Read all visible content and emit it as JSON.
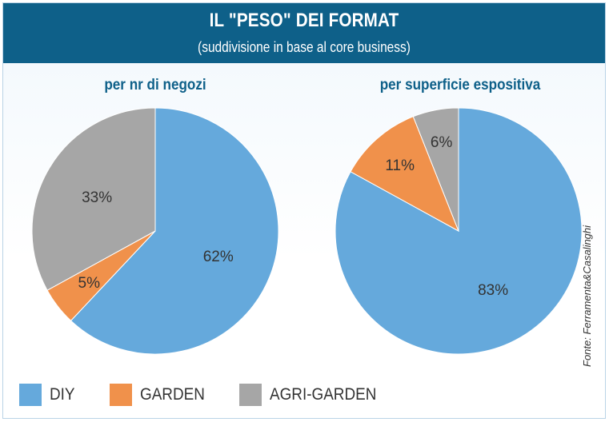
{
  "header": {
    "title": "IL \"PESO\" DEI FORMAT",
    "subtitle": "(suddivisione in base al core business)"
  },
  "colors": {
    "header_bg": "#0e6089",
    "panel_bg_top": "#f4f9fd",
    "panel_bg_bottom": "#ffffff",
    "title_text": "#0e6089",
    "diy": "#65a9dc",
    "garden": "#f0914b",
    "agri_garden": "#a6a6a6"
  },
  "chart_data": [
    {
      "type": "pie",
      "title": "per nr di negozi",
      "slices": [
        {
          "name": "DIY",
          "value": 62,
          "label": "62%"
        },
        {
          "name": "GARDEN",
          "value": 5,
          "label": "5%"
        },
        {
          "name": "AGRI-GARDEN",
          "value": 33,
          "label": "33%"
        }
      ]
    },
    {
      "type": "pie",
      "title": "per superficie espositiva",
      "slices": [
        {
          "name": "DIY",
          "value": 83,
          "label": "83%"
        },
        {
          "name": "GARDEN",
          "value": 11,
          "label": "11%"
        },
        {
          "name": "AGRI-GARDEN",
          "value": 6,
          "label": "6%"
        }
      ]
    }
  ],
  "legend": [
    {
      "name": "DIY",
      "label": "DIY"
    },
    {
      "name": "GARDEN",
      "label": "GARDEN"
    },
    {
      "name": "AGRI-GARDEN",
      "label": "AGRI-GARDEN"
    }
  ],
  "source": "Fonte: Ferramenta&Casalinghi"
}
